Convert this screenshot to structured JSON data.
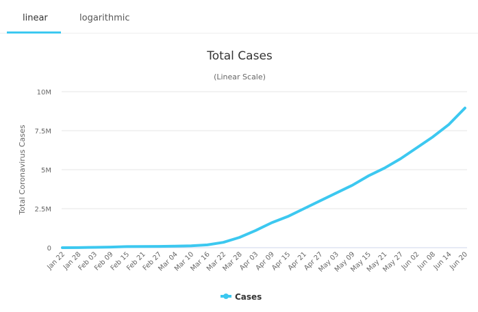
{
  "tabs": [
    {
      "label": "linear",
      "active": true
    },
    {
      "label": "logarithmic",
      "active": false
    }
  ],
  "chart_data": {
    "type": "line",
    "title": "Total Cases",
    "subtitle": "(Linear Scale)",
    "ylabel": "Total Coronavirus Cases",
    "xlabel": "",
    "ylim": [
      0,
      10000000
    ],
    "yticks": [
      {
        "v": 0,
        "label": "0"
      },
      {
        "v": 2500000,
        "label": "2.5M"
      },
      {
        "v": 5000000,
        "label": "5M"
      },
      {
        "v": 7500000,
        "label": "7.5M"
      },
      {
        "v": 10000000,
        "label": "10M"
      }
    ],
    "grid": true,
    "legend": "bottom",
    "color": "#3cc8f0",
    "categories": [
      "Jan 22",
      "Jan 28",
      "Feb 03",
      "Feb 09",
      "Feb 15",
      "Feb 21",
      "Feb 27",
      "Mar 04",
      "Mar 10",
      "Mar 16",
      "Mar 22",
      "Mar 28",
      "Apr 03",
      "Apr 09",
      "Apr 15",
      "Apr 21",
      "Apr 27",
      "May 03",
      "May 09",
      "May 15",
      "May 21",
      "May 27",
      "Jun 02",
      "Jun 08",
      "Jun 14",
      "Jun 20"
    ],
    "series": [
      {
        "name": "Cases",
        "values": [
          600,
          6000,
          20000,
          40000,
          69000,
          77000,
          84000,
          95000,
          120000,
          180000,
          340000,
          660000,
          1100000,
          1600000,
          2000000,
          2500000,
          3000000,
          3500000,
          4000000,
          4600000,
          5100000,
          5700000,
          6400000,
          7100000,
          7900000,
          8950000
        ]
      }
    ]
  }
}
